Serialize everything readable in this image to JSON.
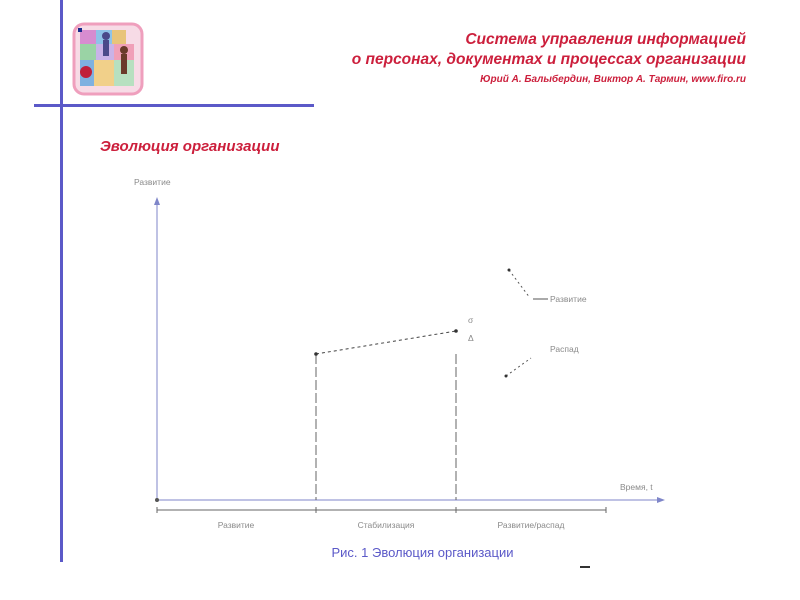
{
  "header": {
    "title_line1": "Система управления информацией",
    "title_line2": "о персонах, документах и процессах организации",
    "authors": "Юрий А. Балыбердин, Виктор А. Тармин, www.firo.ru"
  },
  "section_title": "Эволюция организации",
  "logo": {
    "icon": "puzzle-people-logo"
  },
  "diagram": {
    "y_axis_label": "Развитие",
    "x_axis_label": "Время, t",
    "branch_up_label": "Развитие",
    "branch_down_label": "Распад",
    "point_label_top": "σ",
    "point_label_bottom": "Δ",
    "phases": [
      "Развитие",
      "Стабилизация",
      "Развитие/распад"
    ]
  },
  "caption": "Рис. 1 Эволюция организации",
  "colors": {
    "accent_blue": "#5b59c8",
    "title_red": "#cc1f3c"
  }
}
